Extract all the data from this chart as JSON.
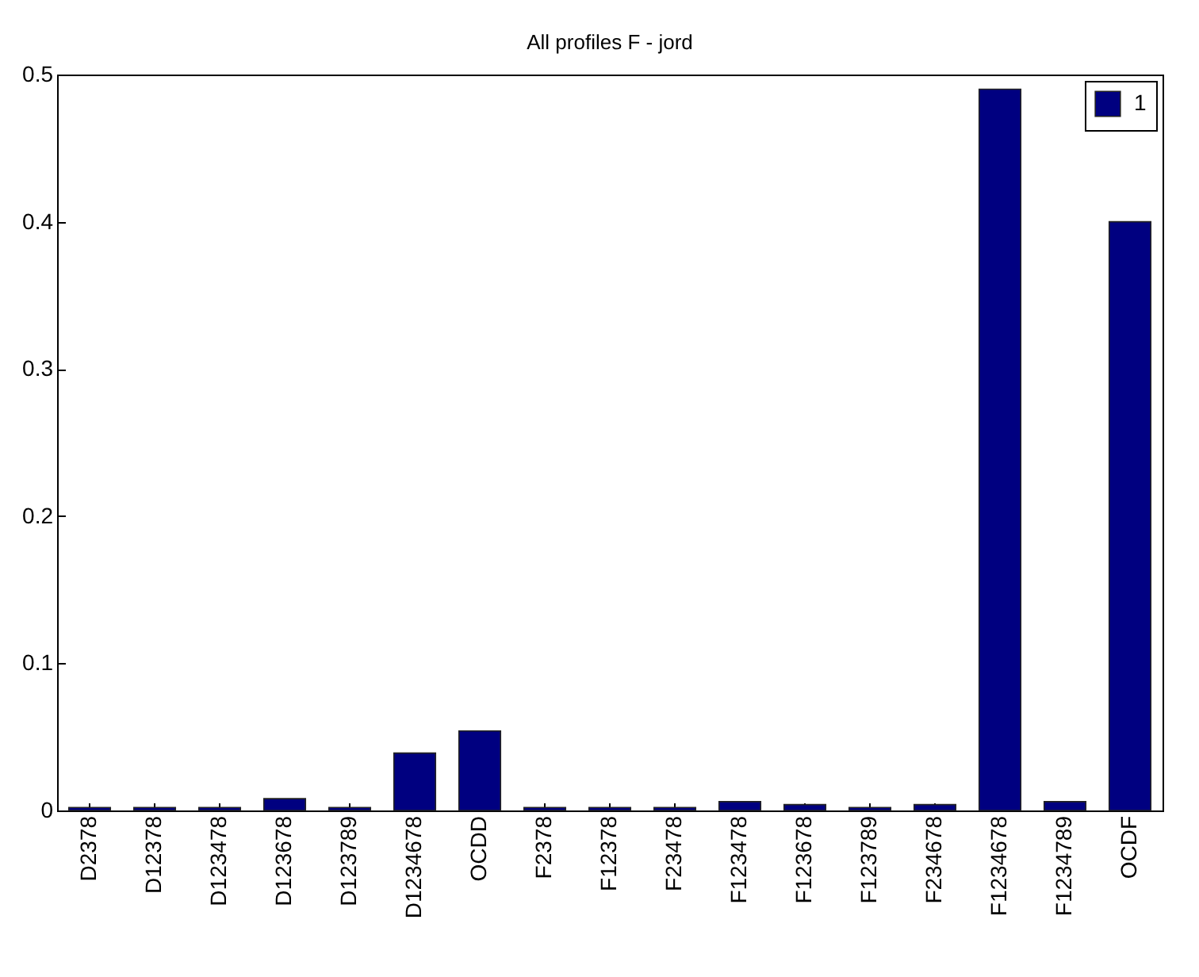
{
  "chart_data": {
    "type": "bar",
    "title": "All profiles F - jord",
    "categories": [
      "D2378",
      "D12378",
      "D123478",
      "D123678",
      "D123789",
      "D1234678",
      "OCDD",
      "F2378",
      "F12378",
      "F23478",
      "F123478",
      "F123678",
      "F123789",
      "F234678",
      "F1234678",
      "F1234789",
      "OCDF"
    ],
    "series": [
      {
        "name": "1",
        "color": "#000080",
        "values": [
          0.002,
          0.002,
          0.002,
          0.008,
          0.002,
          0.039,
          0.054,
          0.002,
          0.002,
          0.002,
          0.006,
          0.004,
          0.002,
          0.004,
          0.49,
          0.006,
          0.4
        ]
      }
    ],
    "ylim": [
      0,
      0.5
    ],
    "yticks": [
      0,
      0.1,
      0.2,
      0.3,
      0.4,
      0.5
    ],
    "grid": false,
    "legend": "top right"
  }
}
